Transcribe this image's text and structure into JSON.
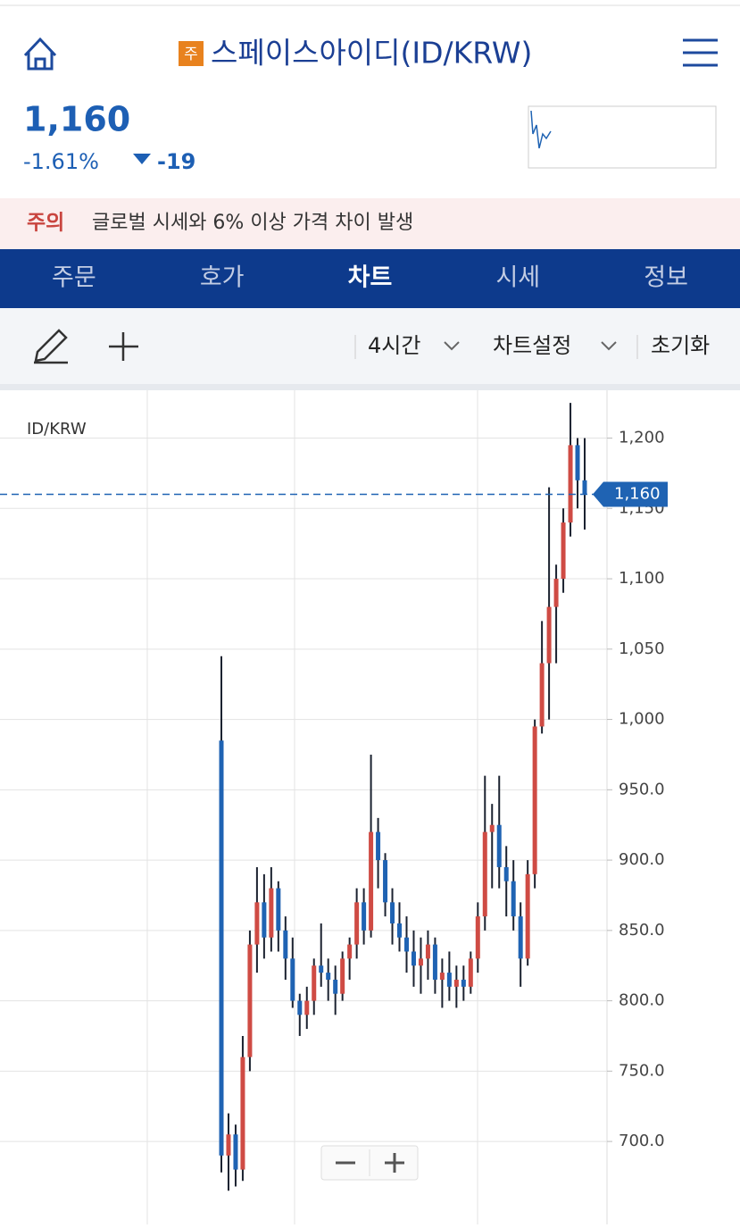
{
  "header": {
    "badge": "주",
    "title": "스페이스아이디(ID/KRW)",
    "price": "1,160",
    "change_rate": "-1.61%",
    "change": "-19"
  },
  "notice": {
    "label": "주의",
    "text": "글로벌 시세와 6% 이상 가격 차이 발생"
  },
  "tabs": [
    "주문",
    "호가",
    "차트",
    "시세",
    "정보"
  ],
  "toolbar": {
    "interval": "4시간",
    "settings": "차트설정",
    "reset": "초기화"
  },
  "chart_data": {
    "type": "candlestick",
    "title": "ID/KRW",
    "categories": [
      null,
      null,
      null,
      null,
      null,
      null,
      null,
      null,
      null,
      null,
      null,
      null,
      null,
      null,
      null,
      null,
      null,
      null,
      null,
      null,
      null,
      null,
      null,
      null,
      null,
      null,
      null,
      null,
      null,
      null,
      null,
      null,
      null,
      null,
      null,
      null,
      null,
      null,
      null,
      null,
      null,
      null,
      null,
      null,
      null,
      null,
      null,
      null,
      null,
      null,
      null,
      null
    ],
    "open": [
      985,
      690,
      705,
      680,
      760,
      840,
      870,
      845,
      880,
      850,
      830,
      800,
      790,
      800,
      825,
      820,
      815,
      805,
      830,
      840,
      870,
      850,
      920,
      900,
      870,
      855,
      845,
      835,
      825,
      830,
      840,
      815,
      820,
      810,
      815,
      810,
      830,
      860,
      920,
      925,
      895,
      885,
      860,
      830,
      890,
      995,
      1040,
      1080,
      1100,
      1140,
      1195,
      1170
    ],
    "high": [
      1045,
      720,
      712,
      775,
      850,
      895,
      890,
      895,
      885,
      860,
      845,
      805,
      810,
      830,
      855,
      830,
      825,
      835,
      845,
      880,
      880,
      975,
      930,
      905,
      880,
      870,
      860,
      850,
      845,
      850,
      845,
      830,
      835,
      825,
      825,
      835,
      870,
      960,
      940,
      960,
      910,
      900,
      870,
      900,
      1000,
      1070,
      1165,
      1110,
      1150,
      1225,
      1200,
      1200
    ],
    "low": [
      678,
      665,
      668,
      672,
      750,
      820,
      830,
      835,
      835,
      815,
      795,
      775,
      780,
      790,
      810,
      800,
      790,
      800,
      815,
      830,
      840,
      845,
      880,
      860,
      840,
      835,
      820,
      810,
      805,
      815,
      805,
      795,
      800,
      795,
      800,
      805,
      820,
      850,
      880,
      880,
      860,
      850,
      810,
      825,
      880,
      990,
      1000,
      1040,
      1090,
      1130,
      1150,
      1135
    ],
    "close": [
      690,
      705,
      680,
      760,
      840,
      870,
      845,
      880,
      850,
      830,
      800,
      790,
      800,
      825,
      820,
      815,
      805,
      830,
      840,
      870,
      850,
      920,
      900,
      870,
      855,
      845,
      835,
      825,
      830,
      840,
      815,
      820,
      810,
      815,
      810,
      830,
      860,
      920,
      925,
      895,
      885,
      860,
      830,
      890,
      995,
      1040,
      1080,
      1100,
      1140,
      1195,
      1170,
      1160
    ],
    "up_color": "#cf4b44",
    "down_color": "#1f63b3",
    "wick_color": "#1b2230",
    "ylim": [
      648,
      1234
    ],
    "yticks": [
      {
        "value": 700,
        "label": "700.0"
      },
      {
        "value": 750,
        "label": "750.0"
      },
      {
        "value": 800,
        "label": "800.0"
      },
      {
        "value": 850,
        "label": "850.0"
      },
      {
        "value": 900,
        "label": "900.0"
      },
      {
        "value": 950,
        "label": "950.0"
      },
      {
        "value": 1000,
        "label": "1,000"
      },
      {
        "value": 1050,
        "label": "1,050"
      },
      {
        "value": 1100,
        "label": "1,100"
      },
      {
        "value": 1150,
        "label": "1,150"
      },
      {
        "value": 1200,
        "label": "1,200"
      }
    ],
    "current_price": {
      "value": 1160,
      "label": "1,160"
    },
    "grid": true
  }
}
